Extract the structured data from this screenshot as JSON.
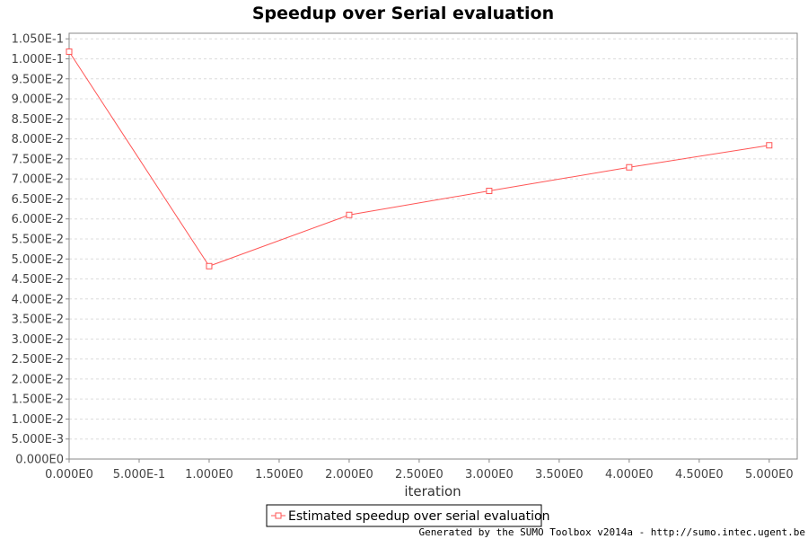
{
  "colors": {
    "series": "#ff5555",
    "grid": "#dcdcdc",
    "plot_border": "#888888"
  },
  "chart_data": {
    "type": "line",
    "title": "Speedup over Serial evaluation",
    "xlabel": "iteration",
    "ylabel": "",
    "xlim": [
      0,
      5.2
    ],
    "ylim": [
      0,
      0.1064
    ],
    "x_ticks": [
      0,
      0.5,
      1,
      1.5,
      2,
      2.5,
      3,
      3.5,
      4,
      4.5,
      5
    ],
    "x_tick_labels": [
      "0.000E0",
      "5.000E-1",
      "1.000E0",
      "1.500E0",
      "2.000E0",
      "2.500E0",
      "3.000E0",
      "3.500E0",
      "4.000E0",
      "4.500E0",
      "5.000E0"
    ],
    "y_ticks": [
      0,
      0.005,
      0.01,
      0.015,
      0.02,
      0.025,
      0.03,
      0.035,
      0.04,
      0.045,
      0.05,
      0.055,
      0.06,
      0.065,
      0.07,
      0.075,
      0.08,
      0.085,
      0.09,
      0.095,
      0.1,
      0.105
    ],
    "y_tick_labels": [
      "0.000E0",
      "5.000E-3",
      "1.000E-2",
      "1.500E-2",
      "2.000E-2",
      "2.500E-2",
      "3.000E-2",
      "3.500E-2",
      "4.000E-2",
      "4.500E-2",
      "5.000E-2",
      "5.500E-2",
      "6.000E-2",
      "6.500E-2",
      "7.000E-2",
      "7.500E-2",
      "8.000E-2",
      "8.500E-2",
      "9.000E-2",
      "9.500E-2",
      "1.000E-1",
      "1.050E-1"
    ],
    "grid": true,
    "legend_position": "bottom-center",
    "series": [
      {
        "name": "Estimated speedup over serial evaluation",
        "marker": "square",
        "x": [
          0,
          1,
          2,
          3,
          4,
          5
        ],
        "y": [
          0.1018,
          0.0482,
          0.061,
          0.067,
          0.0729,
          0.0784
        ]
      }
    ]
  },
  "footer": "Generated by the SUMO Toolbox v2014a - http://sumo.intec.ugent.be"
}
